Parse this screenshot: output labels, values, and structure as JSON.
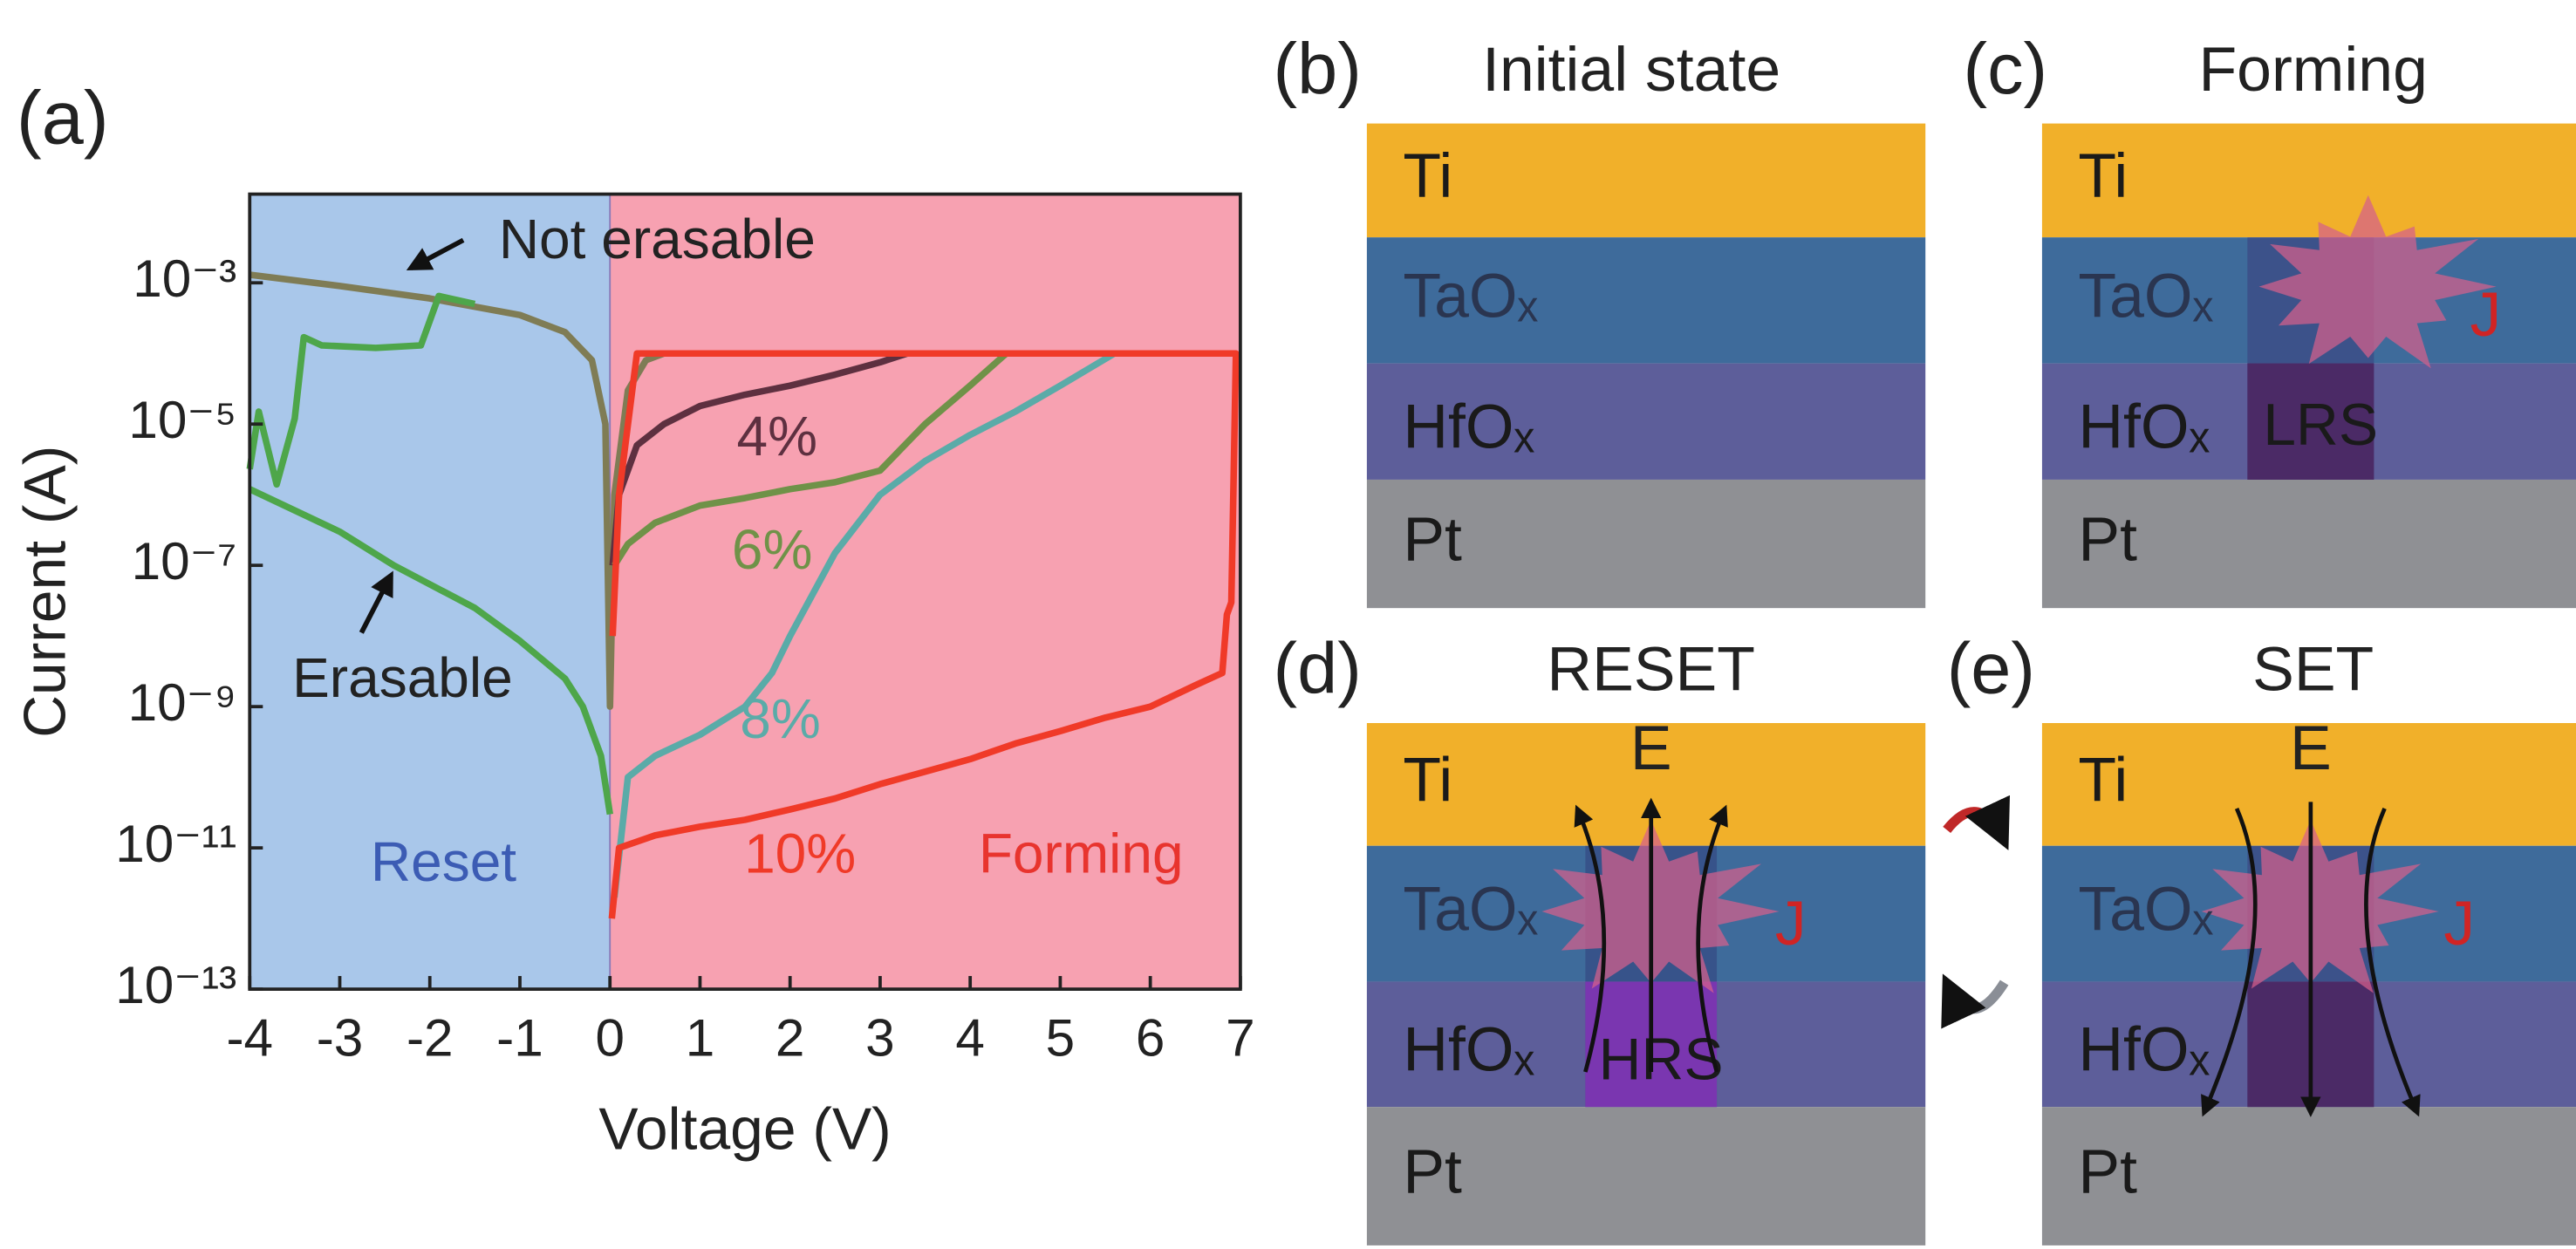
{
  "chart_data": {
    "type": "line",
    "panel_label": "(a)",
    "xlabel": "Voltage (V)",
    "ylabel": "Current (A)",
    "xlim": [
      -4,
      7
    ],
    "xticks": [
      -4,
      -3,
      -2,
      -1,
      0,
      1,
      2,
      3,
      4,
      5,
      6,
      7
    ],
    "ylim": [
      1e-13,
      0.018
    ],
    "log_y": true,
    "yticks": [
      {
        "value": 1e-13,
        "label": "10⁻¹³"
      },
      {
        "value": 1e-11,
        "label": "10⁻¹¹"
      },
      {
        "value": 1e-09,
        "label": "10⁻⁹"
      },
      {
        "value": 1e-07,
        "label": "10⁻⁷"
      },
      {
        "value": 1e-05,
        "label": "10⁻⁵"
      },
      {
        "value": 0.001,
        "label": "10⁻³"
      }
    ],
    "regions": [
      {
        "name": "Reset",
        "x": [
          -4,
          0
        ],
        "color": "#a9c7ea",
        "text_color": "#3c5cb4"
      },
      {
        "name": "Forming",
        "x": [
          0,
          7
        ],
        "color": "#f7a1b1",
        "text_color": "#e8342e"
      }
    ],
    "series": [
      {
        "name": "Not erasable",
        "color": "#7f7c55",
        "x": [
          -4,
          -3,
          -2,
          -1,
          -0.5,
          -0.2,
          -0.05,
          0,
          0.05,
          0.2,
          0.4,
          0.6
        ],
        "values": [
          0.0013,
          0.0009,
          0.0006,
          0.00035,
          0.0002,
          8e-05,
          1e-05,
          1e-09,
          1e-06,
          3e-05,
          8e-05,
          0.0001
        ]
      },
      {
        "name": "Erasable",
        "color": "#4ea64a",
        "x": [
          -4,
          -3,
          -2.4,
          -1.5,
          -1,
          -0.5,
          -0.3,
          -0.1,
          0,
          null,
          -4,
          -3.9,
          -3.7,
          -3.5,
          -3.4,
          -3.2,
          -2.6,
          -2.1,
          -1.9,
          -1.5
        ],
        "values": [
          1.2e-06,
          3e-07,
          1e-07,
          2.5e-08,
          8.5e-09,
          2.5e-09,
          1e-09,
          2e-10,
          3e-11,
          null,
          2.3e-06,
          1.5e-05,
          1.4e-06,
          1.2e-05,
          0.00017,
          0.00013,
          0.00012,
          0.00013,
          0.00065,
          0.0005
        ]
      },
      {
        "name": "4%",
        "color": "#5e3040",
        "x": [
          0.03,
          0.1,
          0.3,
          0.6,
          1,
          1.5,
          2,
          2.5,
          3,
          3.3
        ],
        "values": [
          1e-07,
          1e-06,
          5e-06,
          1e-05,
          1.8e-05,
          2.6e-05,
          3.5e-05,
          5e-05,
          7.5e-05,
          0.0001
        ]
      },
      {
        "name": "6%",
        "color": "#6f9248",
        "x": [
          0.05,
          0.2,
          0.5,
          1,
          1.5,
          2,
          2.5,
          3,
          3.5,
          4,
          4.4
        ],
        "values": [
          1e-07,
          2e-07,
          4e-07,
          7e-07,
          9e-07,
          1.2e-06,
          1.5e-06,
          2.2e-06,
          1e-05,
          3.5e-05,
          0.0001
        ]
      },
      {
        "name": "8%",
        "color": "#5aaba8",
        "x": [
          0.05,
          0.2,
          0.5,
          1,
          1.5,
          1.8,
          2,
          2.5,
          3,
          3.5,
          4,
          4.5,
          5,
          5.6
        ],
        "values": [
          2e-12,
          1e-10,
          2e-10,
          4e-10,
          1e-09,
          3e-09,
          1e-08,
          1.5e-07,
          1e-06,
          3e-06,
          7e-06,
          1.5e-05,
          3.5e-05,
          0.0001
        ]
      },
      {
        "name": "10%",
        "color": "#f03a28",
        "x": [
          0.02,
          0.1,
          0.5,
          1,
          1.5,
          2,
          2.5,
          3,
          3.5,
          4,
          4.5,
          5,
          5.5,
          6,
          6.5,
          6.8,
          6.85,
          6.9,
          6.95,
          5,
          3,
          1,
          0.3,
          0.1,
          0.03
        ],
        "values": [
          1e-12,
          1e-11,
          1.5e-11,
          2e-11,
          2.5e-11,
          3.5e-11,
          5e-11,
          8e-11,
          1.2e-10,
          1.8e-10,
          3e-10,
          4.5e-10,
          7e-10,
          1e-09,
          2e-09,
          3e-09,
          2e-08,
          3e-08,
          0.0001,
          0.0001,
          0.0001,
          0.0001,
          0.0001,
          1e-06,
          1e-08
        ]
      }
    ]
  },
  "panels": [
    {
      "label": "(b)",
      "title": "Initial state",
      "layers": [
        "Ti",
        "TaOₓ",
        "HfOₓ",
        "Pt"
      ]
    },
    {
      "label": "(c)",
      "title": "Forming",
      "layers": [
        "Ti",
        "TaOₓ",
        "HfOₓ",
        "Pt"
      ],
      "filament": "LRS",
      "current": "J"
    },
    {
      "label": "(d)",
      "title": "RESET",
      "layers": [
        "Ti",
        "TaOₓ",
        "HfOₓ",
        "Pt"
      ],
      "filament": "HRS",
      "current": "J",
      "field": "E"
    },
    {
      "label": "(e)",
      "title": "SET",
      "layers": [
        "Ti",
        "TaOₓ",
        "HfOₓ",
        "Pt"
      ],
      "current": "J",
      "field": "E"
    }
  ]
}
